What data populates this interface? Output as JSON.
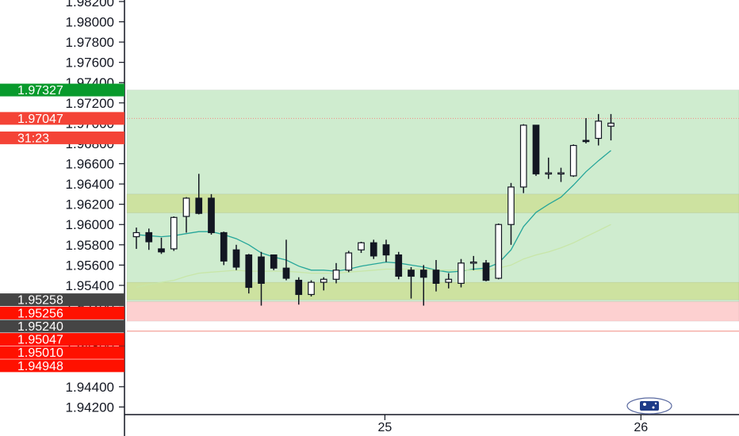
{
  "chart_data": {
    "type": "candlestick",
    "title": "",
    "xlabel": "",
    "ylabel": "",
    "ylim": [
      1.94125,
      1.98215
    ],
    "y_ticks": [
      "1.98200",
      "1.98000",
      "1.97800",
      "1.97600",
      "1.97400",
      "1.97200",
      "1.97000",
      "1.96800",
      "1.96600",
      "1.96400",
      "1.96200",
      "1.96000",
      "1.95800",
      "1.95600",
      "1.95400",
      "1.95200",
      "1.95000",
      "1.94800",
      "1.94600",
      "1.94400",
      "1.94200"
    ],
    "y_tick_values": [
      1.982,
      1.98,
      1.978,
      1.976,
      1.974,
      1.972,
      1.97,
      1.968,
      1.966,
      1.964,
      1.962,
      1.96,
      1.958,
      1.956,
      1.954,
      1.952,
      1.95,
      1.948,
      1.946,
      1.944,
      1.942
    ],
    "x_ticks": [
      {
        "label": "25",
        "index": 19.9
      },
      {
        "label": "26",
        "index": 40.4
      }
    ],
    "candles": [
      {
        "o": 1.9588,
        "h": 1.9597,
        "l": 1.9576,
        "c": 1.9592
      },
      {
        "o": 1.9592,
        "h": 1.9596,
        "l": 1.9575,
        "c": 1.9583
      },
      {
        "o": 1.9576,
        "h": 1.9587,
        "l": 1.9571,
        "c": 1.9573
      },
      {
        "o": 1.9576,
        "h": 1.9608,
        "l": 1.9574,
        "c": 1.9607
      },
      {
        "o": 1.9608,
        "h": 1.9627,
        "l": 1.9592,
        "c": 1.9626
      },
      {
        "o": 1.9626,
        "h": 1.965,
        "l": 1.961,
        "c": 1.9611
      },
      {
        "o": 1.9626,
        "h": 1.963,
        "l": 1.959,
        "c": 1.9592
      },
      {
        "o": 1.9592,
        "h": 1.9593,
        "l": 1.956,
        "c": 1.9564
      },
      {
        "o": 1.9575,
        "h": 1.958,
        "l": 1.9555,
        "c": 1.9558
      },
      {
        "o": 1.957,
        "h": 1.9571,
        "l": 1.9532,
        "c": 1.9538
      },
      {
        "o": 1.9568,
        "h": 1.9573,
        "l": 1.952,
        "c": 1.9542
      },
      {
        "o": 1.957,
        "h": 1.957,
        "l": 1.9555,
        "c": 1.9557
      },
      {
        "o": 1.9557,
        "h": 1.9585,
        "l": 1.9545,
        "c": 1.9547
      },
      {
        "o": 1.9545,
        "h": 1.9548,
        "l": 1.9521,
        "c": 1.9531
      },
      {
        "o": 1.9531,
        "h": 1.9545,
        "l": 1.9529,
        "c": 1.9543
      },
      {
        "o": 1.9543,
        "h": 1.9548,
        "l": 1.9535,
        "c": 1.9546
      },
      {
        "o": 1.9546,
        "h": 1.9562,
        "l": 1.9542,
        "c": 1.9555
      },
      {
        "o": 1.9555,
        "h": 1.9574,
        "l": 1.9553,
        "c": 1.9572
      },
      {
        "o": 1.9575,
        "h": 1.9583,
        "l": 1.9572,
        "c": 1.9582
      },
      {
        "o": 1.9582,
        "h": 1.9585,
        "l": 1.9566,
        "c": 1.9569
      },
      {
        "o": 1.958,
        "h": 1.9585,
        "l": 1.9563,
        "c": 1.957
      },
      {
        "o": 1.957,
        "h": 1.9573,
        "l": 1.9546,
        "c": 1.9549
      },
      {
        "o": 1.9555,
        "h": 1.9558,
        "l": 1.9527,
        "c": 1.9549
      },
      {
        "o": 1.9555,
        "h": 1.956,
        "l": 1.952,
        "c": 1.9548
      },
      {
        "o": 1.9555,
        "h": 1.9565,
        "l": 1.9534,
        "c": 1.9542
      },
      {
        "o": 1.9543,
        "h": 1.9552,
        "l": 1.9537,
        "c": 1.9546
      },
      {
        "o": 1.9542,
        "h": 1.9566,
        "l": 1.9538,
        "c": 1.9562
      },
      {
        "o": 1.9562,
        "h": 1.9569,
        "l": 1.9555,
        "c": 1.9563
      },
      {
        "o": 1.9562,
        "h": 1.9565,
        "l": 1.9544,
        "c": 1.9545
      },
      {
        "o": 1.9547,
        "h": 1.9601,
        "l": 1.9546,
        "c": 1.96
      },
      {
        "o": 1.96,
        "h": 1.9641,
        "l": 1.958,
        "c": 1.9637
      },
      {
        "o": 1.9637,
        "h": 1.9699,
        "l": 1.9631,
        "c": 1.9698
      },
      {
        "o": 1.9698,
        "h": 1.9698,
        "l": 1.9648,
        "c": 1.965
      },
      {
        "o": 1.965,
        "h": 1.9666,
        "l": 1.9645,
        "c": 1.9651
      },
      {
        "o": 1.9651,
        "h": 1.9656,
        "l": 1.9642,
        "c": 1.9651
      },
      {
        "o": 1.9648,
        "h": 1.9679,
        "l": 1.9647,
        "c": 1.9678
      },
      {
        "o": 1.9683,
        "h": 1.9705,
        "l": 1.968,
        "c": 1.9682
      },
      {
        "o": 1.9685,
        "h": 1.9709,
        "l": 1.9678,
        "c": 1.9702
      },
      {
        "o": 1.9697,
        "h": 1.9709,
        "l": 1.9683,
        "c": 1.97
      }
    ],
    "ema_fast": [
      1.959,
      1.9589,
      1.9588,
      1.9589,
      1.9591,
      1.9593,
      1.9593,
      1.959,
      1.9586,
      1.958,
      1.9572,
      1.9568,
      1.9565,
      1.9559,
      1.9555,
      1.9555,
      1.9554,
      1.9556,
      1.9559,
      1.9561,
      1.9563,
      1.9562,
      1.956,
      1.9558,
      1.9555,
      1.9553,
      1.9554,
      1.9556,
      1.9557,
      1.9562,
      1.9575,
      1.9598,
      1.9612,
      1.962,
      1.9627,
      1.9639,
      1.9652,
      1.9663,
      1.9673
    ],
    "ema_slow": [
      1.9538,
      1.9541,
      1.9543,
      1.9545,
      1.9549,
      1.9552,
      1.9553,
      1.9554,
      1.9555,
      1.9554,
      1.9554,
      1.9554,
      1.9554,
      1.9553,
      1.9552,
      1.9552,
      1.9552,
      1.9553,
      1.9554,
      1.9555,
      1.9556,
      1.9556,
      1.9556,
      1.9556,
      1.9555,
      1.9555,
      1.9555,
      1.9555,
      1.9555,
      1.9557,
      1.956,
      1.9566,
      1.957,
      1.9573,
      1.9577,
      1.9582,
      1.9588,
      1.9594,
      1.96
    ],
    "zones": [
      {
        "y1": 1.97327,
        "y2": 1.952,
        "color": "#cfeccf"
      },
      {
        "y1": 1.963,
        "y2": 1.96115,
        "color": "#cde2a0"
      },
      {
        "y1": 1.9543,
        "y2": 1.95258,
        "color": "#cde2a0"
      },
      {
        "y1": 1.9524,
        "y2": 1.95047,
        "color": "#fdd0d0"
      }
    ],
    "lines": [
      {
        "y": 1.97047,
        "color": "#f28b82",
        "style": "dotted"
      },
      {
        "y": 1.94948,
        "color": "#f28b82",
        "style": "solid"
      }
    ],
    "price_labels": [
      {
        "text": "1.97327",
        "y": 1.97327,
        "color": "#089a2c"
      },
      {
        "text": "1.97047",
        "y": 1.97047,
        "color": "#f44336"
      },
      {
        "text": "31:23",
        "y": 1.96855,
        "color": "#f44336"
      },
      {
        "text": "1.95258",
        "y": 1.95258,
        "color": "#454545"
      },
      {
        "text": "1.95256",
        "y": 1.95127,
        "color": "#ff1100"
      },
      {
        "text": "1.95240",
        "y": 1.94997,
        "color": "#454545"
      },
      {
        "text": "1.95047",
        "y": 1.94867,
        "color": "#ff1100"
      },
      {
        "text": "1.95010",
        "y": 1.94737,
        "color": "#ff1100"
      },
      {
        "text": "1.94948",
        "y": 1.94607,
        "color": "#ff1100"
      }
    ],
    "legend": "none",
    "grid": false
  },
  "colors": {
    "axis": "#131722",
    "candle_body": "#131722",
    "candle_hollow": "#ffffff",
    "ema_fast": "#26a69a",
    "ema_slow": "#c8e6a8"
  },
  "icons": {
    "flag": "au-flag-icon"
  }
}
